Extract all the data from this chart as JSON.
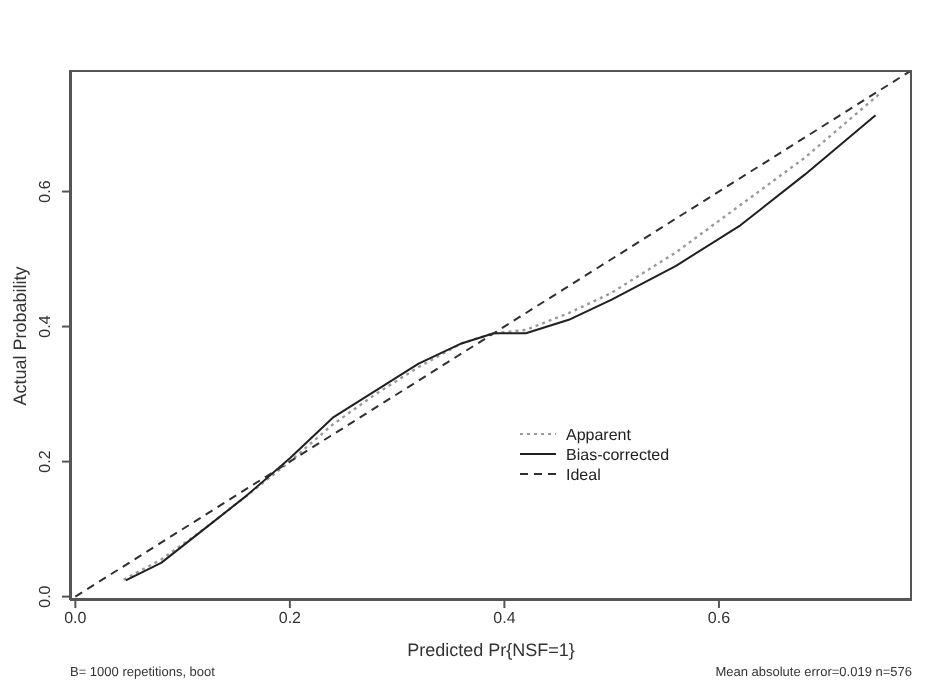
{
  "chart_data": {
    "type": "line",
    "xlabel": "Predicted Pr{NSF=1}",
    "ylabel": "Actual Probability",
    "annotations": [
      "B= 1000 repetitions, boot",
      "Mean absolute error=0.019 n=576"
    ],
    "xlim": [
      -0.005,
      0.78
    ],
    "ylim": [
      -0.005,
      0.78
    ],
    "xticks": [
      {
        "value": 0,
        "label": "0.0"
      },
      0.2,
      0.4,
      0.6
    ],
    "yticks": [
      {
        "value": 0,
        "label": "0.0"
      },
      0.2,
      0.4,
      0.6
    ],
    "legend": "bottom",
    "marker": "none",
    "series": [
      {
        "name": "Apparent",
        "color": "#9a9a9a",
        "line_style": "dotted",
        "x": [
          0.045,
          0.08,
          0.12,
          0.16,
          0.2,
          0.24,
          0.28,
          0.32,
          0.36,
          0.39,
          0.42,
          0.46,
          0.5,
          0.56,
          0.62,
          0.68,
          0.75
        ],
        "values": [
          0.025,
          0.055,
          0.1,
          0.15,
          0.2,
          0.255,
          0.3,
          0.34,
          0.375,
          0.39,
          0.395,
          0.42,
          0.45,
          0.51,
          0.58,
          0.65,
          0.745
        ]
      },
      {
        "name": "Bias-corrected",
        "color": "#202020",
        "line_style": "solid",
        "x": [
          0.047,
          0.08,
          0.12,
          0.16,
          0.2,
          0.24,
          0.28,
          0.32,
          0.36,
          0.39,
          0.42,
          0.46,
          0.5,
          0.56,
          0.62,
          0.68,
          0.746
        ],
        "values": [
          0.024,
          0.05,
          0.1,
          0.15,
          0.205,
          0.265,
          0.305,
          0.345,
          0.375,
          0.39,
          0.39,
          0.41,
          0.44,
          0.49,
          0.55,
          0.625,
          0.713
        ]
      },
      {
        "name": "Ideal",
        "color": "#303030",
        "line_style": "dashed",
        "x": [
          0,
          0.78
        ],
        "values": [
          0,
          0.78
        ]
      }
    ]
  }
}
